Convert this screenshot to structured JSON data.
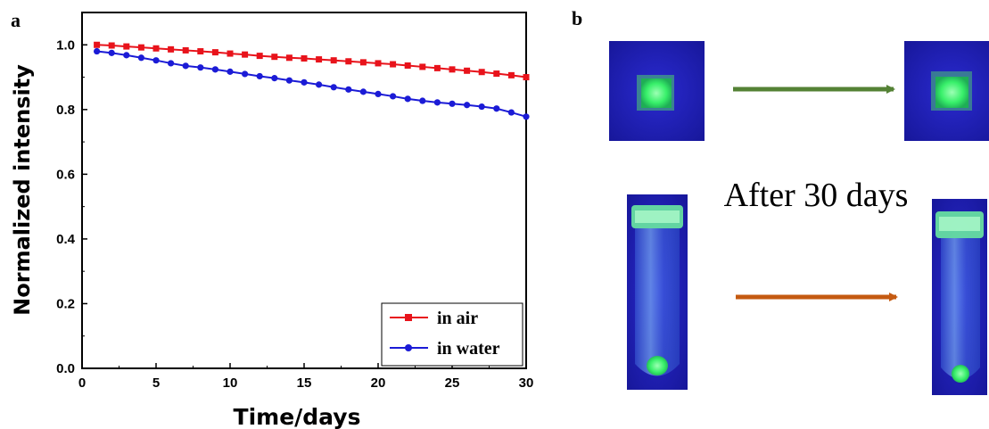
{
  "panels": {
    "a_label": "a",
    "b_label": "b"
  },
  "chart_data": {
    "type": "line",
    "xlabel": "Time/days",
    "ylabel": "Normalized intensity",
    "xlim": [
      0,
      30
    ],
    "ylim": [
      0.0,
      1.1
    ],
    "x_ticks": [
      "0",
      "5",
      "10",
      "15",
      "20",
      "25",
      "30"
    ],
    "y_ticks": [
      "0.0",
      "0.2",
      "0.4",
      "0.6",
      "0.8",
      "1.0"
    ],
    "grid": false,
    "legend_position": "bottom-right",
    "series": [
      {
        "name": "in air",
        "color": "#e8131b",
        "marker": "square",
        "x": [
          1,
          2,
          3,
          4,
          5,
          6,
          7,
          8,
          9,
          10,
          11,
          12,
          13,
          14,
          15,
          16,
          17,
          18,
          19,
          20,
          21,
          22,
          23,
          24,
          25,
          26,
          27,
          28,
          29,
          30
        ],
        "y": [
          1.0,
          0.998,
          0.995,
          0.992,
          0.989,
          0.986,
          0.983,
          0.98,
          0.977,
          0.973,
          0.97,
          0.966,
          0.963,
          0.96,
          0.958,
          0.955,
          0.952,
          0.949,
          0.946,
          0.943,
          0.94,
          0.936,
          0.932,
          0.928,
          0.924,
          0.92,
          0.916,
          0.911,
          0.906,
          0.9
        ]
      },
      {
        "name": "in water",
        "color": "#1b1bd6",
        "marker": "circle",
        "x": [
          1,
          2,
          3,
          4,
          5,
          6,
          7,
          8,
          9,
          10,
          11,
          12,
          13,
          14,
          15,
          16,
          17,
          18,
          19,
          20,
          21,
          22,
          23,
          24,
          25,
          26,
          27,
          28,
          29,
          30
        ],
        "y": [
          0.98,
          0.975,
          0.968,
          0.96,
          0.952,
          0.943,
          0.935,
          0.93,
          0.924,
          0.917,
          0.91,
          0.903,
          0.897,
          0.89,
          0.884,
          0.877,
          0.869,
          0.862,
          0.855,
          0.848,
          0.841,
          0.833,
          0.827,
          0.822,
          0.818,
          0.814,
          0.809,
          0.803,
          0.791,
          0.778
        ]
      }
    ]
  },
  "photo_panel": {
    "caption": "After 30 days",
    "arrow_top_color": "#548235",
    "arrow_bottom_color": "#c55a11",
    "uv_background": "#1e1eb4",
    "glow_color": "#38f06a"
  }
}
